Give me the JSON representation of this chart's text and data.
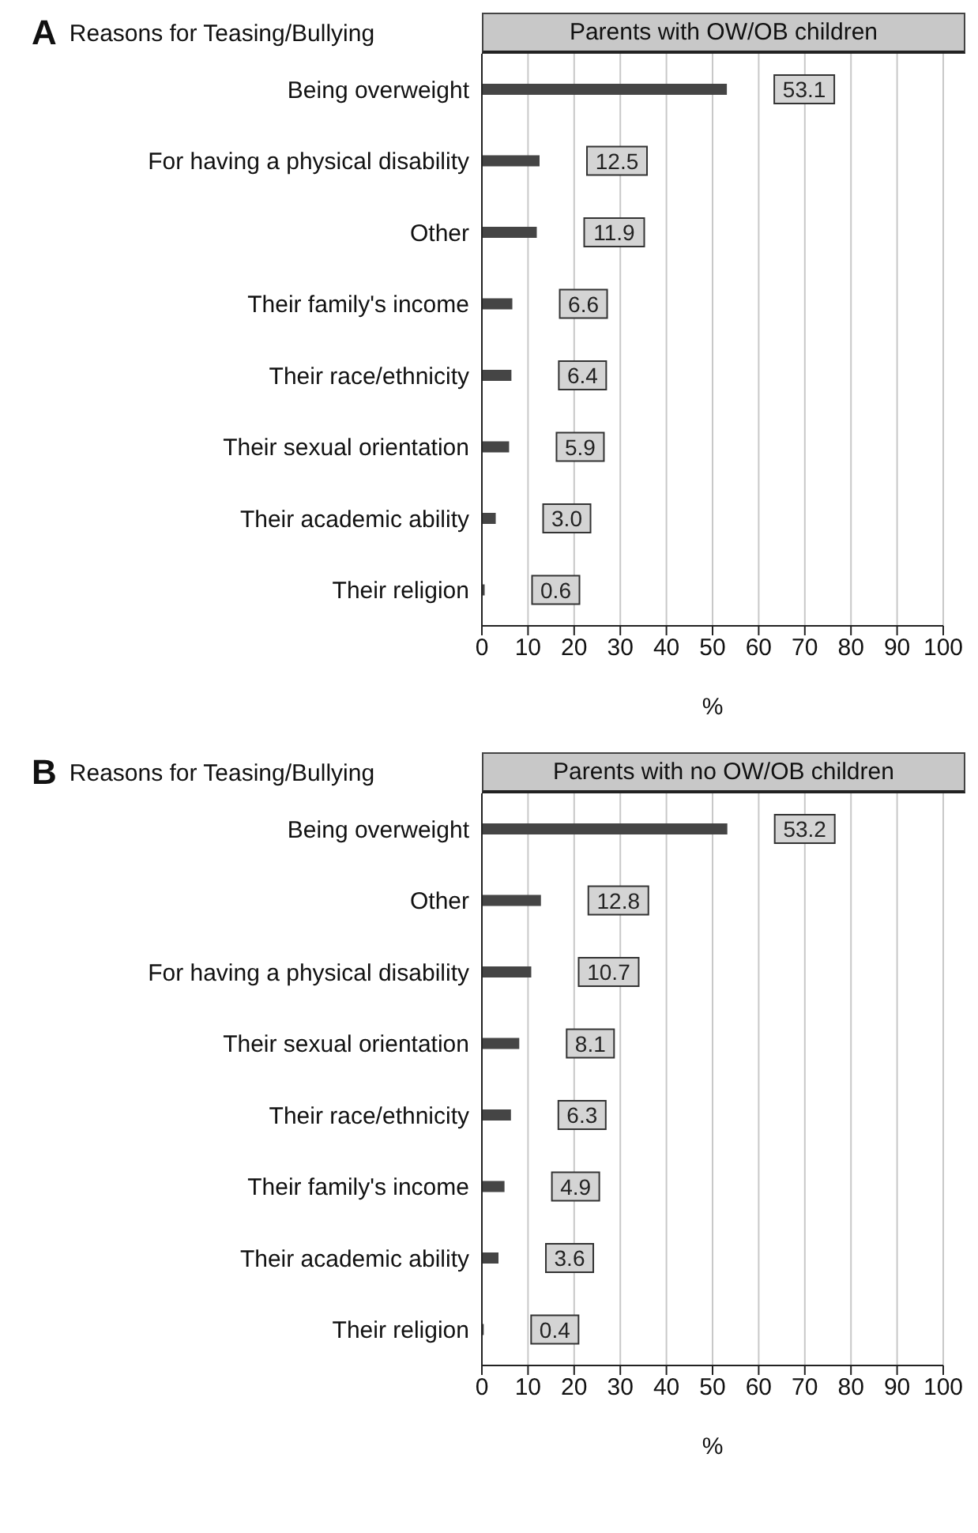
{
  "chart_data": [
    {
      "type": "bar",
      "orientation": "horizontal",
      "title": "Reasons for Teasing/Bullying",
      "subtitle": "Parents with OW/OB children",
      "xlabel": "%",
      "annotations": [
        "A"
      ],
      "categories": [
        "Being overweight",
        "For having a physical disability",
        "Other",
        "Their family's income",
        "Their race/ethnicity",
        "Their sexual orientation",
        "Their academic ability",
        "Their religion"
      ],
      "values": [
        53.1,
        12.5,
        11.9,
        6.6,
        6.4,
        5.9,
        3.0,
        0.6
      ],
      "color": "#454545",
      "value_labels": [
        "53.1",
        "12.5",
        "11.9",
        "6.6",
        "6.4",
        "5.9",
        "3.0",
        "0.6"
      ],
      "xlim": [
        0,
        100
      ],
      "xticks": [
        0,
        10,
        20,
        30,
        40,
        50,
        60,
        70,
        80,
        90,
        100
      ],
      "grid": "x",
      "legend": false
    },
    {
      "type": "bar",
      "orientation": "horizontal",
      "title": "Reasons for Teasing/Bullying",
      "subtitle": "Parents with no OW/OB children",
      "xlabel": "%",
      "annotations": [
        "B"
      ],
      "categories": [
        "Being overweight",
        "Other",
        "For having a physical disability",
        "Their sexual orientation",
        "Their race/ethnicity",
        "Their family's income",
        "Their academic ability",
        "Their religion"
      ],
      "values": [
        53.2,
        12.8,
        10.7,
        8.1,
        6.3,
        4.9,
        3.6,
        0.4
      ],
      "color": "#454545",
      "value_labels": [
        "53.2",
        "12.8",
        "10.7",
        "8.1",
        "6.3",
        "4.9",
        "3.6",
        "0.4"
      ],
      "xlim": [
        0,
        100
      ],
      "xticks": [
        0,
        10,
        20,
        30,
        40,
        50,
        60,
        70,
        80,
        90,
        100
      ],
      "grid": "x",
      "legend": false
    }
  ]
}
